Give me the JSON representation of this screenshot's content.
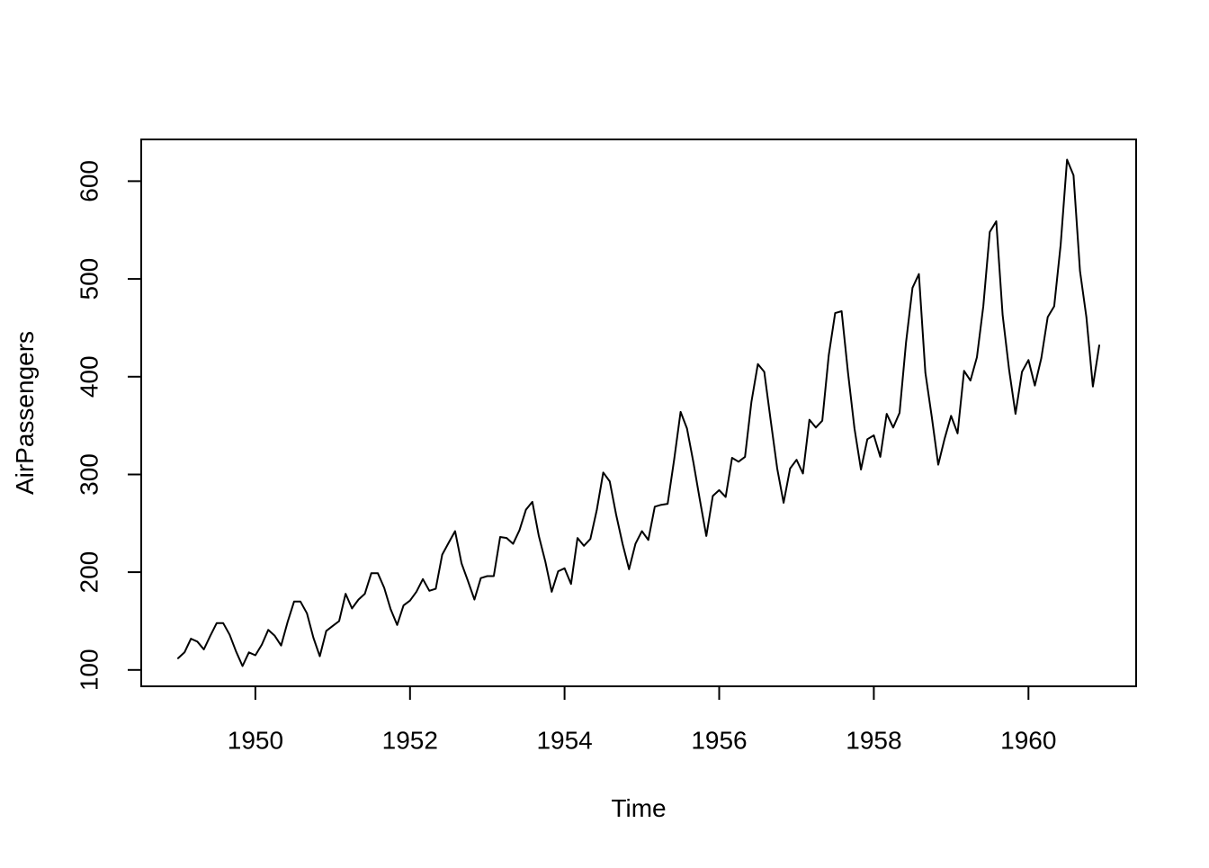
{
  "chart_data": {
    "type": "line",
    "title": "",
    "xlabel": "Time",
    "ylabel": "AirPassengers",
    "series": [
      {
        "name": "AirPassengers",
        "start_year": 1949,
        "frequency": 12,
        "values": [
          112,
          118,
          132,
          129,
          121,
          135,
          148,
          148,
          136,
          119,
          104,
          118,
          115,
          126,
          141,
          135,
          125,
          149,
          170,
          170,
          158,
          133,
          114,
          140,
          145,
          150,
          178,
          163,
          172,
          178,
          199,
          199,
          184,
          162,
          146,
          166,
          171,
          180,
          193,
          181,
          183,
          218,
          230,
          242,
          209,
          191,
          172,
          194,
          196,
          196,
          236,
          235,
          229,
          243,
          264,
          272,
          237,
          211,
          180,
          201,
          204,
          188,
          235,
          227,
          234,
          264,
          302,
          293,
          259,
          229,
          203,
          229,
          242,
          233,
          267,
          269,
          270,
          315,
          364,
          347,
          312,
          274,
          237,
          278,
          284,
          277,
          317,
          313,
          318,
          374,
          413,
          405,
          355,
          306,
          271,
          306,
          315,
          301,
          356,
          348,
          355,
          422,
          465,
          467,
          404,
          347,
          305,
          336,
          340,
          318,
          362,
          348,
          363,
          435,
          491,
          505,
          404,
          359,
          310,
          337,
          360,
          342,
          406,
          396,
          420,
          472,
          548,
          559,
          463,
          407,
          362,
          405,
          417,
          391,
          419,
          461,
          472,
          535,
          622,
          606,
          508,
          461,
          390,
          432
        ]
      }
    ],
    "x_ticks": [
      1950,
      1952,
      1954,
      1956,
      1958,
      1960
    ],
    "y_ticks": [
      100,
      200,
      300,
      400,
      500,
      600
    ],
    "xlim": [
      1948.5233,
      1961.3933
    ],
    "ylim": [
      83.28,
      642.72
    ],
    "grid": false,
    "legend_position": "none",
    "line_color": "#000000",
    "background_color": "#ffffff"
  }
}
